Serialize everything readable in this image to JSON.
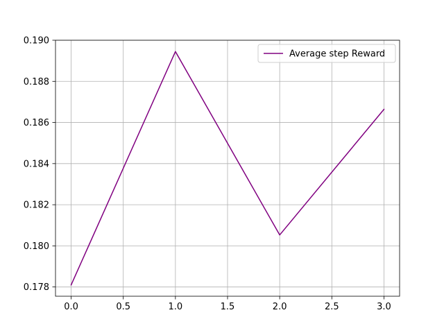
{
  "chart_data": {
    "type": "line",
    "x": [
      0,
      1,
      2,
      3
    ],
    "series": [
      {
        "name": "Average step Reward",
        "values": [
          0.1781,
          0.18945,
          0.18053,
          0.18664
        ],
        "color": "#800080"
      }
    ],
    "xlim": [
      -0.15,
      3.15
    ],
    "ylim": [
      0.17755,
      0.19
    ],
    "xticks": [
      0.0,
      0.5,
      1.0,
      1.5,
      2.0,
      2.5,
      3.0
    ],
    "xtick_labels": [
      "0.0",
      "0.5",
      "1.0",
      "1.5",
      "2.0",
      "2.5",
      "3.0"
    ],
    "yticks": [
      0.178,
      0.18,
      0.182,
      0.184,
      0.186,
      0.188,
      0.19
    ],
    "ytick_labels": [
      "0.178",
      "0.180",
      "0.182",
      "0.184",
      "0.186",
      "0.188",
      "0.190"
    ],
    "grid": true,
    "grid_color": "#b0b0b0",
    "legend_position": "top-right",
    "title": "",
    "xlabel": "",
    "ylabel": ""
  }
}
